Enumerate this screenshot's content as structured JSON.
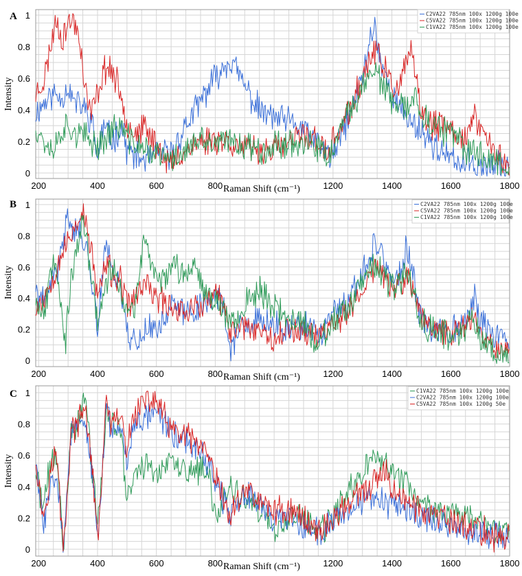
{
  "chart_data": [
    {
      "type": "line",
      "panel": "A",
      "xlabel": "Raman Shift (cm⁻¹)",
      "ylabel": "Intensity",
      "xlim": [
        190,
        1800
      ],
      "ylim": [
        0,
        1
      ],
      "x_ticks": [
        200,
        400,
        600,
        800,
        1000,
        1200,
        1400,
        1600,
        1800
      ],
      "y_ticks": [
        0,
        0.2,
        0.4,
        0.6,
        0.8,
        1
      ],
      "x_tick_labels": [
        "200",
        "400",
        "600",
        "800",
        "",
        "1200",
        "1400",
        "1600",
        "1800"
      ],
      "y_tick_labels": [
        "0",
        "0.2",
        "0.4",
        "0.6",
        "0.8",
        "1"
      ],
      "series": [
        {
          "name": "C2VA22 785nm 100x 1200g 100e",
          "color": "#3a6fd8",
          "seed": 11,
          "x": [
            190,
            220,
            250,
            280,
            300,
            320,
            350,
            380,
            400,
            420,
            450,
            480,
            500,
            530,
            560,
            600,
            650,
            700,
            750,
            780,
            800,
            830,
            850,
            880,
            900,
            930,
            960,
            1000,
            1050,
            1100,
            1150,
            1180,
            1200,
            1230,
            1260,
            1300,
            1320,
            1340,
            1360,
            1390,
            1420,
            1450,
            1480,
            1500,
            1530,
            1560,
            1600,
            1650,
            1700,
            1750,
            1800
          ],
          "y": [
            0.38,
            0.45,
            0.5,
            0.48,
            0.55,
            0.45,
            0.42,
            0.33,
            0.1,
            0.3,
            0.2,
            0.3,
            0.15,
            0.1,
            0.08,
            0.12,
            0.12,
            0.3,
            0.45,
            0.55,
            0.6,
            0.68,
            0.72,
            0.62,
            0.55,
            0.45,
            0.38,
            0.35,
            0.32,
            0.28,
            0.18,
            0.12,
            0.1,
            0.25,
            0.38,
            0.6,
            0.8,
            0.95,
            0.72,
            0.55,
            0.42,
            0.35,
            0.3,
            0.28,
            0.2,
            0.15,
            0.08,
            0.06,
            0.05,
            0.04,
            0.04
          ]
        },
        {
          "name": "C5VA22 785nm 100x 1200g 100e",
          "color": "#d82424",
          "seed": 23,
          "x": [
            190,
            220,
            240,
            260,
            280,
            300,
            320,
            340,
            360,
            380,
            400,
            420,
            440,
            470,
            490,
            500,
            530,
            560,
            600,
            650,
            700,
            750,
            800,
            850,
            900,
            950,
            1000,
            1050,
            1100,
            1150,
            1180,
            1200,
            1230,
            1260,
            1300,
            1320,
            1340,
            1360,
            1390,
            1420,
            1440,
            1460,
            1480,
            1500,
            1530,
            1560,
            1600,
            1650,
            1680,
            1700,
            1750,
            1800
          ],
          "y": [
            0.5,
            0.6,
            0.8,
            0.98,
            0.85,
            0.95,
            0.97,
            0.85,
            0.5,
            0.38,
            0.5,
            0.65,
            0.68,
            0.55,
            0.42,
            0.32,
            0.25,
            0.28,
            0.18,
            0.05,
            0.15,
            0.2,
            0.22,
            0.2,
            0.15,
            0.15,
            0.15,
            0.18,
            0.25,
            0.2,
            0.1,
            0.2,
            0.3,
            0.4,
            0.6,
            0.7,
            0.78,
            0.72,
            0.6,
            0.5,
            0.62,
            0.8,
            0.6,
            0.38,
            0.3,
            0.3,
            0.28,
            0.22,
            0.35,
            0.3,
            0.12,
            0.06
          ]
        },
        {
          "name": "C1VA22 785nm 100x 1200g 100e",
          "color": "#2e9a58",
          "seed": 37,
          "x": [
            190,
            220,
            250,
            280,
            300,
            330,
            360,
            400,
            430,
            450,
            480,
            500,
            530,
            560,
            600,
            650,
            700,
            750,
            800,
            850,
            900,
            950,
            1000,
            1050,
            1100,
            1150,
            1180,
            1200,
            1230,
            1260,
            1300,
            1320,
            1340,
            1360,
            1390,
            1420,
            1450,
            1480,
            1500,
            1530,
            1560,
            1600,
            1650,
            1700,
            1750,
            1800
          ],
          "y": [
            0.3,
            0.2,
            0.15,
            0.28,
            0.3,
            0.25,
            0.22,
            0.18,
            0.22,
            0.28,
            0.3,
            0.22,
            0.18,
            0.15,
            0.12,
            0.08,
            0.15,
            0.2,
            0.18,
            0.2,
            0.18,
            0.15,
            0.17,
            0.2,
            0.18,
            0.15,
            0.1,
            0.15,
            0.28,
            0.4,
            0.55,
            0.62,
            0.68,
            0.58,
            0.48,
            0.4,
            0.42,
            0.48,
            0.4,
            0.3,
            0.28,
            0.25,
            0.15,
            0.12,
            0.08,
            0.04
          ]
        }
      ]
    },
    {
      "type": "line",
      "panel": "B",
      "xlabel": "Raman Shift (cm⁻¹)",
      "ylabel": "Intensity",
      "xlim": [
        190,
        1800
      ],
      "ylim": [
        0,
        1
      ],
      "x_ticks": [
        200,
        400,
        600,
        800,
        1000,
        1200,
        1400,
        1600,
        1800
      ],
      "y_ticks": [
        0,
        0.2,
        0.4,
        0.6,
        0.8,
        1
      ],
      "x_tick_labels": [
        "200",
        "400",
        "600",
        "800",
        "",
        "1200",
        "1400",
        "1600",
        "1800"
      ],
      "y_tick_labels": [
        "0",
        "0.2",
        "0.4",
        "0.6",
        "0.8",
        "1"
      ],
      "series": [
        {
          "name": "C2VA22 785nm 100x 1200g 100e",
          "color": "#3a6fd8",
          "seed": 41,
          "x": [
            190,
            220,
            250,
            270,
            300,
            320,
            350,
            380,
            400,
            430,
            450,
            480,
            500,
            530,
            560,
            600,
            650,
            700,
            750,
            800,
            830,
            850,
            880,
            900,
            950,
            1000,
            1050,
            1100,
            1150,
            1200,
            1250,
            1300,
            1330,
            1350,
            1380,
            1400,
            1430,
            1450,
            1480,
            1500,
            1550,
            1600,
            1650,
            1680,
            1700,
            1750,
            1800
          ],
          "y": [
            0.45,
            0.35,
            0.55,
            0.6,
            0.95,
            0.85,
            0.8,
            0.55,
            0.2,
            0.8,
            0.6,
            0.45,
            0.2,
            0.1,
            0.2,
            0.2,
            0.35,
            0.3,
            0.35,
            0.42,
            0.35,
            0.05,
            0.22,
            0.2,
            0.25,
            0.22,
            0.2,
            0.22,
            0.15,
            0.3,
            0.35,
            0.55,
            0.7,
            0.78,
            0.6,
            0.5,
            0.55,
            0.72,
            0.45,
            0.25,
            0.2,
            0.2,
            0.25,
            0.4,
            0.25,
            0.15,
            0.12
          ]
        },
        {
          "name": "C5VA22 785nm 100x 1200g 100e",
          "color": "#d82424",
          "seed": 53,
          "x": [
            190,
            220,
            250,
            280,
            300,
            330,
            350,
            380,
            400,
            430,
            450,
            480,
            500,
            530,
            560,
            600,
            650,
            700,
            750,
            800,
            830,
            850,
            880,
            900,
            950,
            1000,
            1050,
            1100,
            1150,
            1200,
            1250,
            1300,
            1330,
            1350,
            1380,
            1400,
            1430,
            1450,
            1480,
            1500,
            1550,
            1600,
            1650,
            1680,
            1700,
            1750,
            1800
          ],
          "y": [
            0.35,
            0.4,
            0.55,
            0.7,
            0.75,
            0.9,
            0.95,
            0.7,
            0.4,
            0.62,
            0.55,
            0.5,
            0.35,
            0.4,
            0.5,
            0.4,
            0.35,
            0.32,
            0.35,
            0.42,
            0.35,
            0.15,
            0.25,
            0.22,
            0.2,
            0.15,
            0.2,
            0.2,
            0.15,
            0.25,
            0.3,
            0.45,
            0.55,
            0.62,
            0.52,
            0.45,
            0.48,
            0.55,
            0.42,
            0.25,
            0.2,
            0.18,
            0.22,
            0.3,
            0.2,
            0.1,
            0.05
          ]
        },
        {
          "name": "C1VA22 785nm 100x 1200g 100e",
          "color": "#2e9a58",
          "seed": 67,
          "x": [
            190,
            220,
            250,
            270,
            290,
            310,
            350,
            380,
            400,
            430,
            450,
            480,
            500,
            530,
            560,
            600,
            650,
            700,
            730,
            750,
            800,
            830,
            850,
            900,
            950,
            1000,
            1050,
            1100,
            1150,
            1200,
            1250,
            1300,
            1330,
            1350,
            1380,
            1400,
            1430,
            1450,
            1480,
            1500,
            1550,
            1600,
            1650,
            1680,
            1700,
            1750,
            1800
          ],
          "y": [
            0.4,
            0.3,
            0.7,
            0.5,
            0.1,
            0.5,
            0.9,
            0.55,
            0.25,
            0.5,
            0.6,
            0.45,
            0.3,
            0.35,
            0.8,
            0.5,
            0.6,
            0.55,
            0.65,
            0.5,
            0.4,
            0.3,
            0.25,
            0.35,
            0.45,
            0.35,
            0.25,
            0.25,
            0.1,
            0.25,
            0.3,
            0.5,
            0.6,
            0.6,
            0.5,
            0.45,
            0.5,
            0.6,
            0.4,
            0.25,
            0.2,
            0.15,
            0.2,
            0.28,
            0.15,
            0.05,
            0.05
          ]
        }
      ]
    },
    {
      "type": "line",
      "panel": "C",
      "xlabel": "Raman Shift (cm⁻¹)",
      "ylabel": "Intensity",
      "xlim": [
        190,
        1800
      ],
      "ylim": [
        0,
        1
      ],
      "x_ticks": [
        200,
        400,
        600,
        800,
        1000,
        1200,
        1400,
        1600,
        1800
      ],
      "y_ticks": [
        0,
        0.2,
        0.4,
        0.6,
        0.8,
        1
      ],
      "x_tick_labels": [
        "200",
        "400",
        "600",
        "800",
        "",
        "1200",
        "1400",
        "1600",
        "1800"
      ],
      "y_tick_labels": [
        "0",
        "0.2",
        "0.4",
        "0.6",
        "0.8",
        "1"
      ],
      "series": [
        {
          "name": "C1VA22 785nm 100x 1200g 100e",
          "color": "#2e9a58",
          "seed": 71,
          "x": [
            190,
            215,
            240,
            260,
            285,
            310,
            340,
            360,
            380,
            400,
            430,
            450,
            480,
            500,
            520,
            560,
            600,
            650,
            700,
            750,
            780,
            800,
            850,
            900,
            950,
            1000,
            1050,
            1100,
            1150,
            1200,
            1250,
            1300,
            1330,
            1350,
            1380,
            1400,
            1450,
            1500,
            1550,
            1600,
            1650,
            1700,
            1750,
            1800
          ],
          "y": [
            0.5,
            0.25,
            0.55,
            0.6,
            0.0,
            0.75,
            0.85,
            0.98,
            0.55,
            0.15,
            0.85,
            0.8,
            0.75,
            0.3,
            0.45,
            0.55,
            0.5,
            0.55,
            0.5,
            0.5,
            0.45,
            0.2,
            0.4,
            0.3,
            0.25,
            0.1,
            0.2,
            0.2,
            0.1,
            0.2,
            0.35,
            0.5,
            0.6,
            0.55,
            0.58,
            0.5,
            0.42,
            0.3,
            0.25,
            0.2,
            0.22,
            0.15,
            0.12,
            0.1
          ]
        },
        {
          "name": "C2VA22 785nm 100x 1200g 100e",
          "color": "#3a6fd8",
          "seed": 83,
          "x": [
            190,
            215,
            240,
            260,
            285,
            310,
            340,
            360,
            380,
            400,
            430,
            450,
            480,
            500,
            520,
            560,
            600,
            650,
            700,
            750,
            780,
            800,
            850,
            900,
            950,
            1000,
            1050,
            1100,
            1150,
            1200,
            1250,
            1300,
            1350,
            1400,
            1450,
            1500,
            1550,
            1600,
            1650,
            1700,
            1750,
            1800
          ],
          "y": [
            0.55,
            0.15,
            0.4,
            0.55,
            0.0,
            0.75,
            0.78,
            0.8,
            0.5,
            0.05,
            0.9,
            0.75,
            0.8,
            0.55,
            0.8,
            0.85,
            0.9,
            0.75,
            0.7,
            0.6,
            0.55,
            0.45,
            0.2,
            0.35,
            0.3,
            0.2,
            0.18,
            0.15,
            0.1,
            0.2,
            0.25,
            0.3,
            0.3,
            0.28,
            0.25,
            0.2,
            0.18,
            0.15,
            0.12,
            0.1,
            0.08,
            0.08
          ]
        },
        {
          "name": "C5VA22 785nm 100x 1200g 50e",
          "color": "#d82424",
          "seed": 97,
          "x": [
            190,
            215,
            240,
            260,
            285,
            310,
            340,
            360,
            380,
            400,
            430,
            450,
            480,
            500,
            520,
            560,
            600,
            650,
            700,
            750,
            780,
            800,
            850,
            900,
            950,
            1000,
            1050,
            1100,
            1150,
            1200,
            1250,
            1300,
            1330,
            1350,
            1380,
            1400,
            1450,
            1500,
            1550,
            1600,
            1650,
            1700,
            1750,
            1800
          ],
          "y": [
            0.6,
            0.2,
            0.5,
            0.62,
            0.0,
            0.75,
            0.82,
            0.9,
            0.55,
            0.05,
            0.92,
            0.78,
            0.85,
            0.6,
            0.85,
            0.95,
            0.95,
            0.75,
            0.72,
            0.65,
            0.55,
            0.45,
            0.2,
            0.4,
            0.3,
            0.25,
            0.25,
            0.2,
            0.12,
            0.18,
            0.3,
            0.35,
            0.4,
            0.45,
            0.48,
            0.4,
            0.3,
            0.25,
            0.2,
            0.18,
            0.15,
            0.12,
            0.08,
            0.08
          ]
        }
      ]
    }
  ]
}
